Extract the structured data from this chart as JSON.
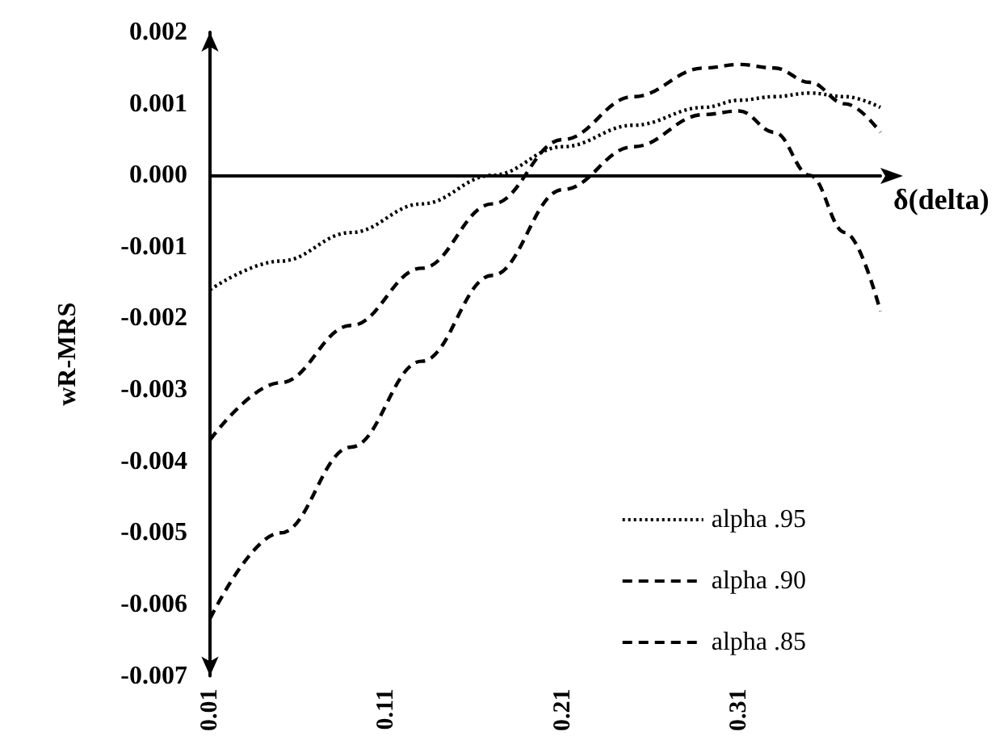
{
  "chart_data": {
    "type": "line",
    "xlabel": "δ(delta)",
    "ylabel": "wR-MRS",
    "x": [
      0.01,
      0.05,
      0.09,
      0.13,
      0.17,
      0.21,
      0.25,
      0.29,
      0.31,
      0.33,
      0.35,
      0.37,
      0.39
    ],
    "series": [
      {
        "name": "alpha .95",
        "color": "#000000",
        "line_style": "dotted",
        "values": [
          -0.0016,
          -0.0012,
          -0.0008,
          -0.0004,
          0.0,
          0.0004,
          0.0007,
          0.00095,
          0.00105,
          0.0011,
          0.00115,
          0.0011,
          0.00095
        ]
      },
      {
        "name": "alpha .90",
        "color": "#000000",
        "line_style": "dashed",
        "values": [
          -0.0037,
          -0.0029,
          -0.0021,
          -0.0013,
          -0.0004,
          0.0005,
          0.0011,
          0.0015,
          0.00155,
          0.0015,
          0.0013,
          0.001,
          0.0006
        ]
      },
      {
        "name": "alpha .85",
        "color": "#000000",
        "line_style": "dashed",
        "values": [
          -0.0062,
          -0.005,
          -0.0038,
          -0.0026,
          -0.0014,
          -0.0002,
          0.0004,
          0.00085,
          0.0009,
          0.0006,
          0.0,
          -0.0008,
          -0.0019
        ]
      }
    ],
    "xlim": [
      0.01,
      0.39
    ],
    "xticks": [
      0.01,
      0.11,
      0.21,
      0.31
    ],
    "ylim": [
      -0.007,
      0.002
    ],
    "yticks": [
      -0.007,
      -0.006,
      -0.005,
      -0.004,
      -0.003,
      -0.002,
      -0.001,
      {
        "value": 0,
        "label": "0.000"
      },
      0.001,
      0.002
    ],
    "legend": "bottom right",
    "marker": "none"
  }
}
